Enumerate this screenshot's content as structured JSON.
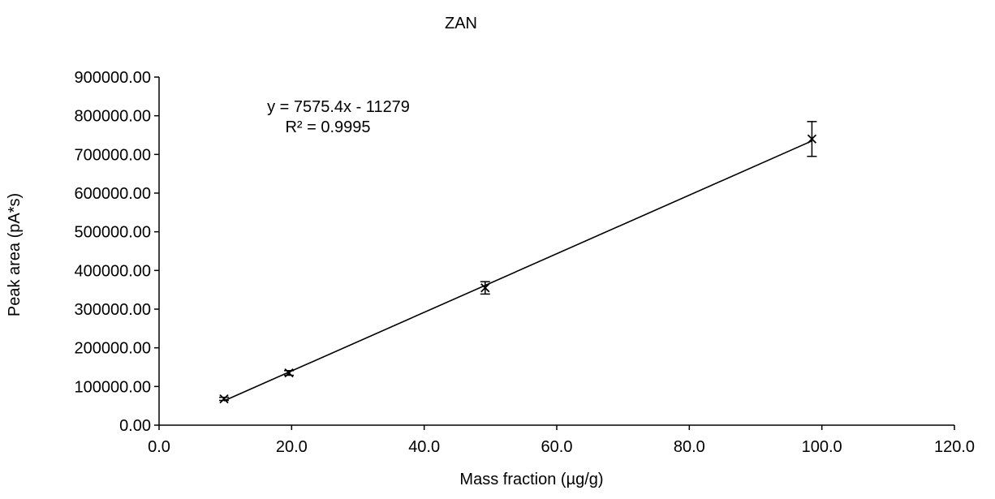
{
  "chart_data": {
    "type": "scatter",
    "title": "ZAN",
    "xlabel": "Mass fraction (µg/g)",
    "ylabel": "Peak area (pA*s)",
    "xlim": [
      0,
      120
    ],
    "ylim": [
      0,
      900000
    ],
    "x_ticks": [
      "0.0",
      "20.0",
      "40.0",
      "60.0",
      "80.0",
      "100.0",
      "120.0"
    ],
    "y_ticks": [
      "0.00",
      "100000.00",
      "200000.00",
      "300000.00",
      "400000.00",
      "500000.00",
      "600000.00",
      "700000.00",
      "800000.00",
      "900000.00"
    ],
    "grid": false,
    "legend": "none",
    "marker": "x",
    "series": [
      {
        "points": [
          {
            "x": 9.8,
            "y": 68000,
            "err": 4000
          },
          {
            "x": 19.6,
            "y": 135000,
            "err": 6000
          },
          {
            "x": 49.2,
            "y": 355000,
            "err": 16000
          },
          {
            "x": 98.5,
            "y": 740000,
            "err": 45000
          }
        ]
      }
    ],
    "trendline": {
      "slope": 7575.4,
      "intercept": -11279,
      "x_range": [
        9.8,
        98.5
      ],
      "equation": "y = 7575.4x - 11279",
      "r_squared": "R² = 0.9995"
    }
  }
}
